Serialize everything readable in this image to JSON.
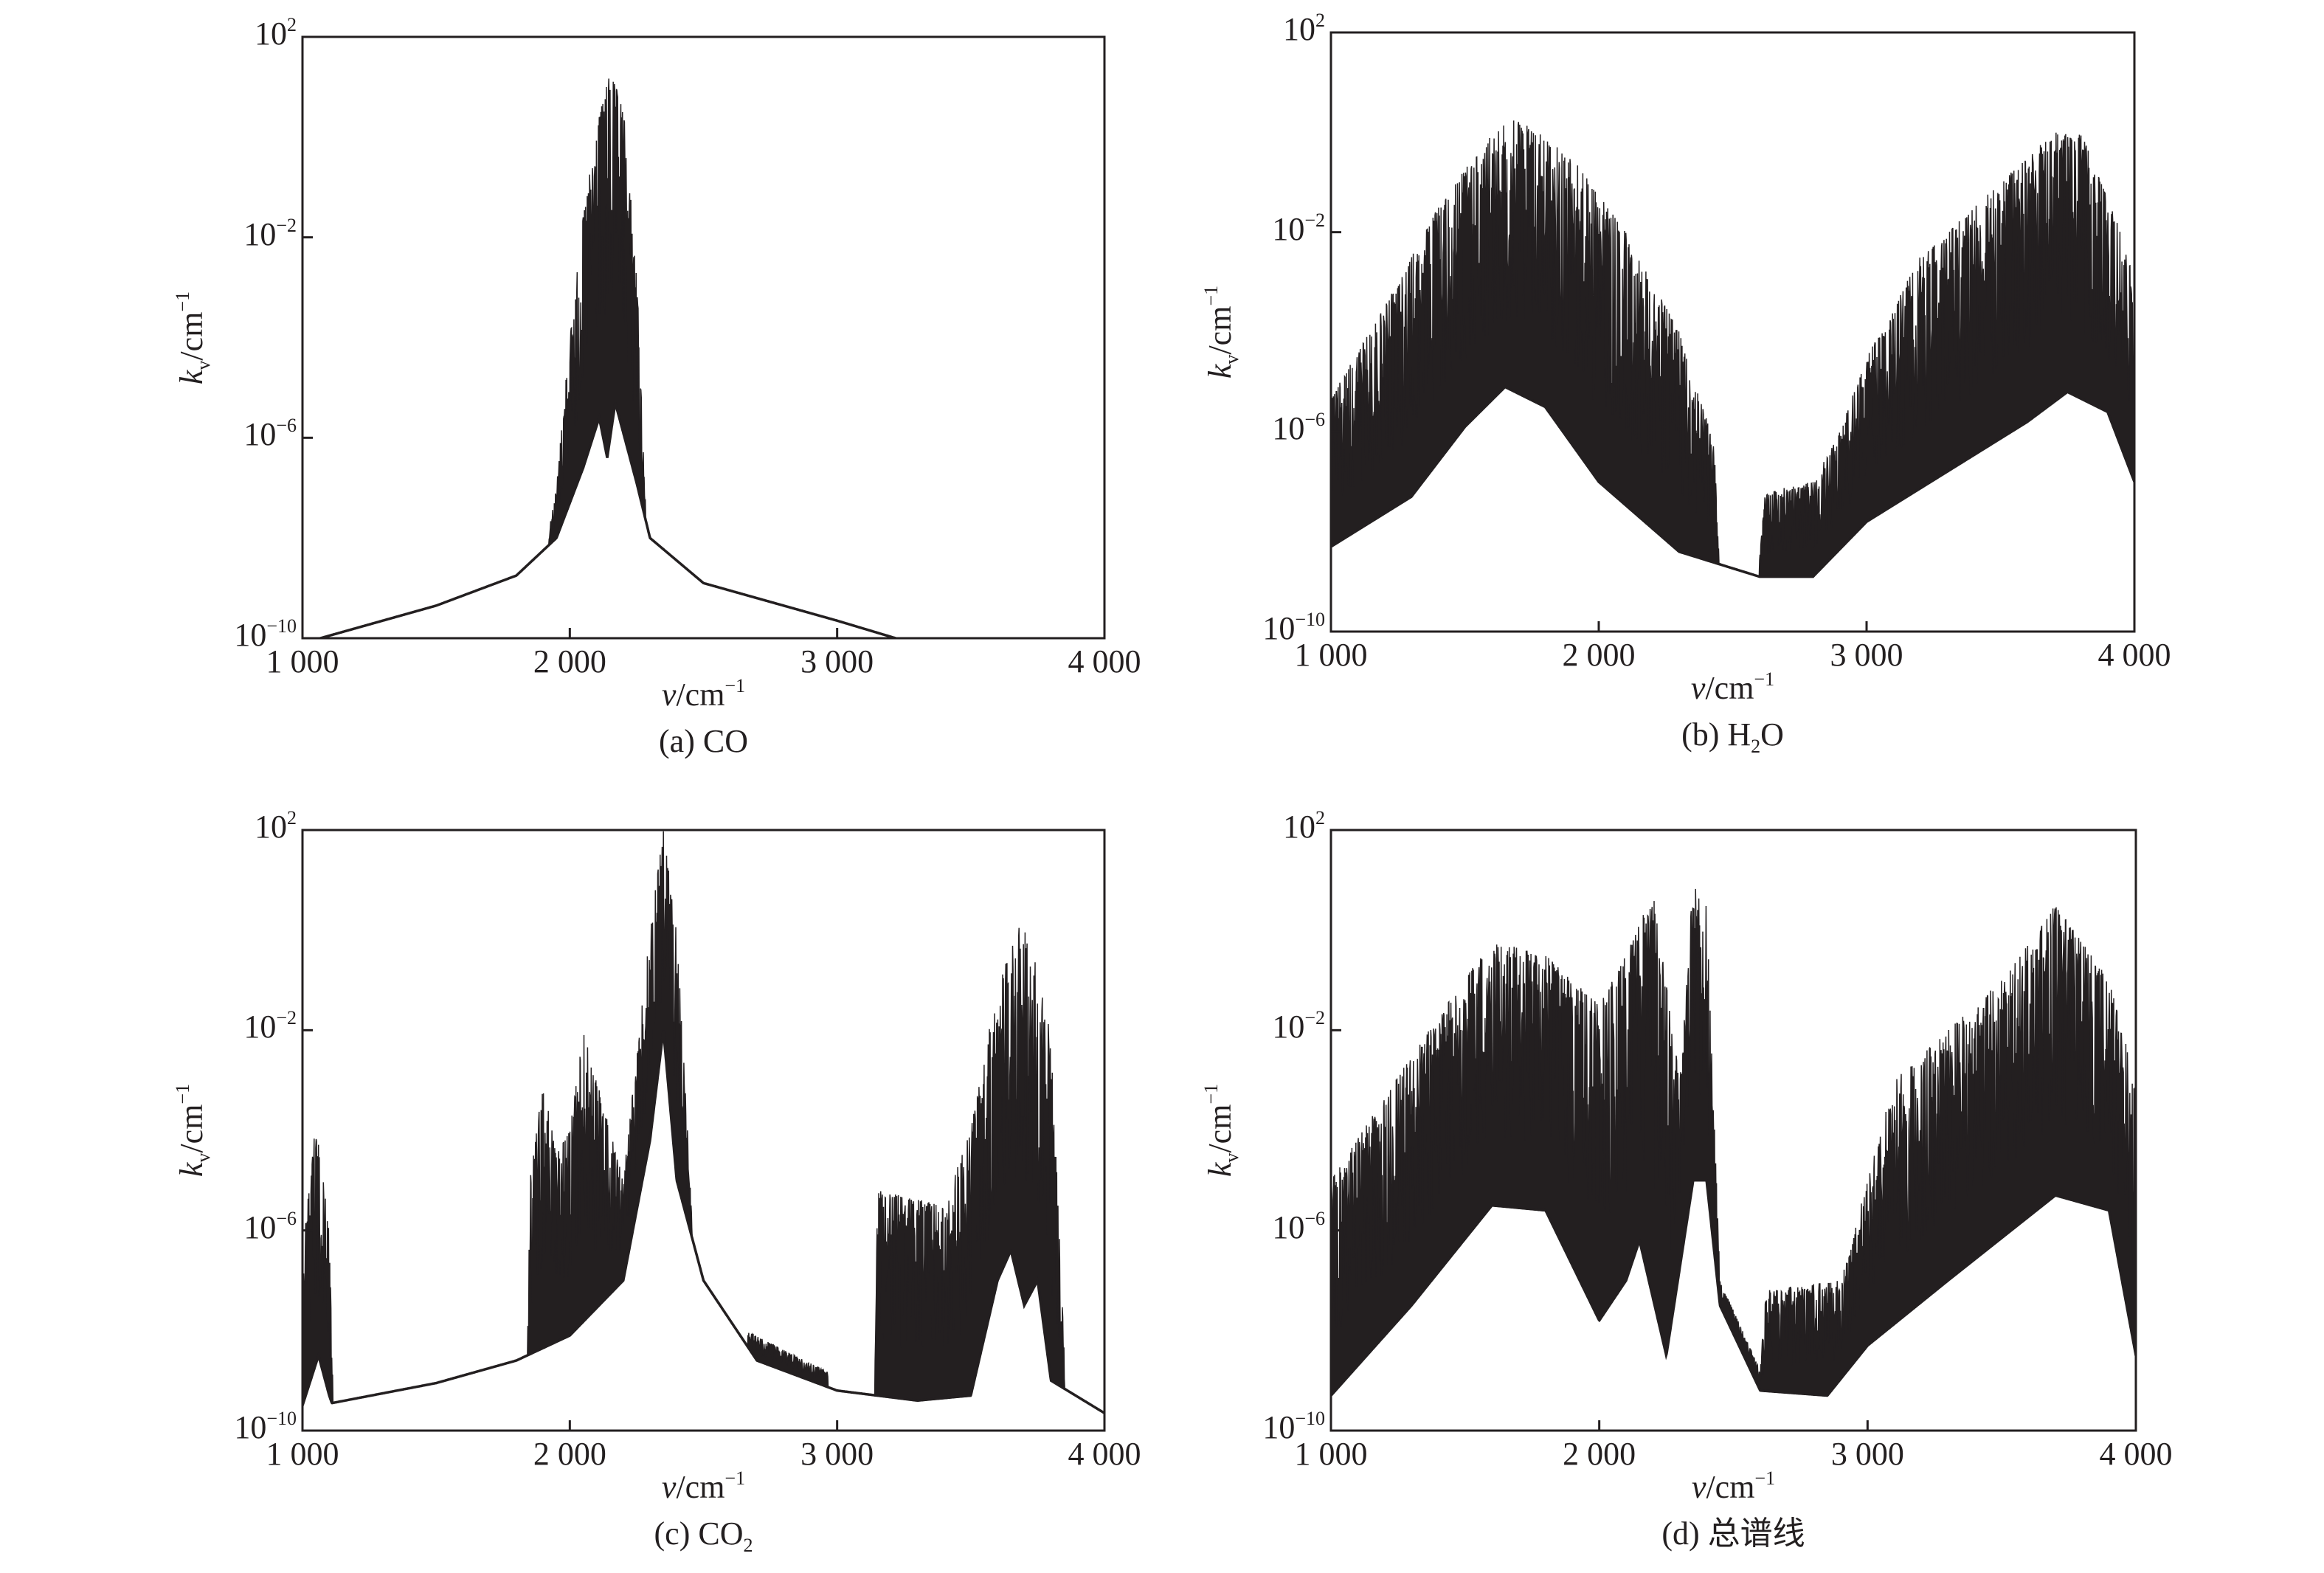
{
  "chart_data": [
    {
      "type": "area",
      "title": "",
      "caption": {
        "pre": "(a) CO",
        "sub": "",
        "post": ""
      },
      "xlabel": {
        "var": "v",
        "unit": "/cm",
        "exp": "−1"
      },
      "ylabel": {
        "var": "k",
        "sub": "v",
        "unit": "/cm",
        "exp": "−1"
      },
      "xlim": [
        1000,
        4000
      ],
      "ylim_log10": [
        -10,
        2
      ],
      "xticks": [
        "1 000",
        "2 000",
        "3 000",
        "4 000"
      ],
      "xtick_values": [
        1000,
        2000,
        3000,
        4000
      ],
      "yticks": [
        {
          "base": "10",
          "exp": "2"
        },
        {
          "base": "10",
          "exp": "−2"
        },
        {
          "base": "10",
          "exp": "−6"
        },
        {
          "base": "10",
          "exp": "−10"
        }
      ],
      "ytick_values": [
        2,
        -2,
        -6,
        -10
      ],
      "series": [
        {
          "name": "CO",
          "lower_log10": [
            [
              1000,
              -10.1
            ],
            [
              1500,
              -9.35
            ],
            [
              1800,
              -8.75
            ],
            [
              1950,
              -8.0
            ],
            [
              2050,
              -6.6
            ],
            [
              2110,
              -5.6
            ],
            [
              2140,
              -6.4
            ],
            [
              2170,
              -5.3
            ],
            [
              2250,
              -6.9
            ],
            [
              2300,
              -8.0
            ],
            [
              2500,
              -8.9
            ],
            [
              3000,
              -9.65
            ],
            [
              3250,
              -10.05
            ],
            [
              4000,
              -10.8
            ]
          ],
          "upper_log10": [
            [
              1910,
              -8.2
            ],
            [
              1950,
              -7.0
            ],
            [
              1990,
              -4.5
            ],
            [
              2050,
              -1.6
            ],
            [
              2100,
              0.2
            ],
            [
              2150,
              1.3
            ],
            [
              2200,
              0.6
            ],
            [
              2250,
              -2.6
            ],
            [
              2270,
              -5.5
            ],
            [
              2290,
              -8.3
            ]
          ]
        }
      ]
    },
    {
      "type": "area",
      "title": "",
      "caption": {
        "pre": "(b) H",
        "sub": "2",
        "post": "O"
      },
      "xlabel": {
        "var": "v",
        "unit": "/cm",
        "exp": "−1"
      },
      "ylabel": {
        "var": "k",
        "sub": "v",
        "unit": "/cm",
        "exp": "−1"
      },
      "xlim": [
        1000,
        4000
      ],
      "ylim_log10": [
        -10,
        2
      ],
      "xticks": [
        "1 000",
        "2 000",
        "3 000",
        "4 000"
      ],
      "xtick_values": [
        1000,
        2000,
        3000,
        4000
      ],
      "yticks": [
        {
          "base": "10",
          "exp": "2"
        },
        {
          "base": "10",
          "exp": "−2"
        },
        {
          "base": "10",
          "exp": "−6"
        },
        {
          "base": "10",
          "exp": "−10"
        }
      ],
      "ytick_values": [
        2,
        -2,
        -6,
        -10
      ],
      "series": [
        {
          "name": "H2O",
          "lower_log10": [
            [
              1000,
              -8.3
            ],
            [
              1300,
              -7.3
            ],
            [
              1500,
              -5.9
            ],
            [
              1650,
              -5.1
            ],
            [
              1800,
              -5.5
            ],
            [
              2000,
              -7.0
            ],
            [
              2300,
              -8.4
            ],
            [
              2600,
              -8.9
            ],
            [
              2800,
              -8.9
            ],
            [
              3000,
              -7.8
            ],
            [
              3300,
              -6.8
            ],
            [
              3600,
              -5.8
            ],
            [
              3750,
              -5.2
            ],
            [
              3900,
              -5.6
            ],
            [
              4000,
              -7.0
            ]
          ],
          "upper_log10": [
            [
              1000,
              -5.3
            ],
            [
              1200,
              -3.5
            ],
            [
              1400,
              -1.5
            ],
            [
              1600,
              0.0
            ],
            [
              1700,
              0.3
            ],
            [
              1900,
              -0.5
            ],
            [
              2100,
              -2.0
            ],
            [
              2300,
              -4.0
            ],
            [
              2430,
              -6.2
            ],
            [
              2450,
              -8.5
            ],
            [
              2600,
              -8.6
            ],
            [
              2620,
              -7.2
            ],
            [
              2800,
              -7.0
            ],
            [
              2900,
              -6.0
            ],
            [
              3000,
              -4.5
            ],
            [
              3200,
              -2.5
            ],
            [
              3500,
              -1.0
            ],
            [
              3700,
              0.0
            ],
            [
              3800,
              0.0
            ],
            [
              3950,
              -2.0
            ],
            [
              4000,
              -3.0
            ]
          ]
        }
      ]
    },
    {
      "type": "area",
      "title": "",
      "caption": {
        "pre": "(c) CO",
        "sub": "2",
        "post": ""
      },
      "xlabel": {
        "var": "v",
        "unit": "/cm",
        "exp": "−1"
      },
      "ylabel": {
        "var": "k",
        "sub": "v",
        "unit": "/cm",
        "exp": "−1"
      },
      "xlim": [
        1000,
        4000
      ],
      "ylim_log10": [
        -10,
        2
      ],
      "xticks": [
        "1 000",
        "2 000",
        "3 000",
        "4 000"
      ],
      "xtick_values": [
        1000,
        2000,
        3000,
        4000
      ],
      "yticks": [
        {
          "base": "10",
          "exp": "2"
        },
        {
          "base": "10",
          "exp": "−2"
        },
        {
          "base": "10",
          "exp": "−6"
        },
        {
          "base": "10",
          "exp": "−10"
        }
      ],
      "ytick_values": [
        2,
        -2,
        -6,
        -10
      ],
      "series": [
        {
          "name": "CO2",
          "lower_log10": [
            [
              1000,
              -9.5
            ],
            [
              1060,
              -8.5
            ],
            [
              1100,
              -9.3
            ],
            [
              1110,
              -9.45
            ],
            [
              1500,
              -9.05
            ],
            [
              1800,
              -8.6
            ],
            [
              2000,
              -8.1
            ],
            [
              2200,
              -7.0
            ],
            [
              2300,
              -4.2
            ],
            [
              2350,
              -2.0
            ],
            [
              2400,
              -5.0
            ],
            [
              2500,
              -7.0
            ],
            [
              2700,
              -8.6
            ],
            [
              3000,
              -9.2
            ],
            [
              3300,
              -9.4
            ],
            [
              3500,
              -9.3
            ],
            [
              3600,
              -7.0
            ],
            [
              3650,
              -6.4
            ],
            [
              3700,
              -7.5
            ],
            [
              3750,
              -7.0
            ],
            [
              3800,
              -9.0
            ],
            [
              4000,
              -9.65
            ]
          ],
          "upper_log10": [
            [
              1000,
              -6.5
            ],
            [
              1050,
              -3.8
            ],
            [
              1100,
              -6.0
            ],
            [
              1115,
              -9.4
            ],
            [
              1840,
              -9.0
            ],
            [
              1850,
              -5.0
            ],
            [
              1900,
              -3.0
            ],
            [
              1950,
              -4.5
            ],
            [
              2000,
              -4.0
            ],
            [
              2050,
              -2.0
            ],
            [
              2100,
              -3.0
            ],
            [
              2200,
              -5.0
            ],
            [
              2300,
              0.0
            ],
            [
              2350,
              2.0
            ],
            [
              2400,
              0.0
            ],
            [
              2450,
              -5.0
            ],
            [
              2470,
              -7.5
            ],
            [
              3140,
              -9.3
            ],
            [
              3150,
              -5.2
            ],
            [
              3400,
              -5.5
            ],
            [
              3500,
              -4.0
            ],
            [
              3600,
              -1.0
            ],
            [
              3700,
              0.3
            ],
            [
              3800,
              -2.0
            ],
            [
              3850,
              -8.5
            ]
          ]
        }
      ]
    },
    {
      "type": "area",
      "title": "",
      "caption": {
        "pre": "(d) 总谱线",
        "sub": "",
        "post": ""
      },
      "xlabel": {
        "var": "v",
        "unit": "/cm",
        "exp": "−1"
      },
      "ylabel": {
        "var": "k",
        "sub": "v",
        "unit": "/cm",
        "exp": "−1"
      },
      "xlim": [
        1000,
        4000
      ],
      "ylim_log10": [
        -10,
        2
      ],
      "xticks": [
        "1 000",
        "2 000",
        "3 000",
        "4 000"
      ],
      "xtick_values": [
        1000,
        2000,
        3000,
        4000
      ],
      "yticks": [
        {
          "base": "10",
          "exp": "2"
        },
        {
          "base": "10",
          "exp": "−2"
        },
        {
          "base": "10",
          "exp": "−6"
        },
        {
          "base": "10",
          "exp": "−10"
        }
      ],
      "ytick_values": [
        2,
        -2,
        -6,
        -10
      ],
      "series": [
        {
          "name": "total",
          "lower_log10": [
            [
              1000,
              -9.3
            ],
            [
              1300,
              -7.5
            ],
            [
              1600,
              -5.5
            ],
            [
              1800,
              -5.6
            ],
            [
              2000,
              -7.8
            ],
            [
              2100,
              -7.0
            ],
            [
              2150,
              -6.2
            ],
            [
              2250,
              -8.5
            ],
            [
              2350,
              -5.0
            ],
            [
              2400,
              -5.0
            ],
            [
              2450,
              -7.5
            ],
            [
              2600,
              -9.2
            ],
            [
              2850,
              -9.3
            ],
            [
              3000,
              -8.3
            ],
            [
              3300,
              -7.0
            ],
            [
              3700,
              -5.3
            ],
            [
              3900,
              -5.6
            ],
            [
              4000,
              -8.5
            ]
          ],
          "upper_log10": [
            [
              1000,
              -5.0
            ],
            [
              1300,
              -2.5
            ],
            [
              1600,
              -0.2
            ],
            [
              1800,
              -0.5
            ],
            [
              2000,
              -1.5
            ],
            [
              2100,
              -0.5
            ],
            [
              2200,
              0.8
            ],
            [
              2300,
              -3.0
            ],
            [
              2350,
              1.0
            ],
            [
              2400,
              0.5
            ],
            [
              2450,
              -7.0
            ],
            [
              2600,
              -8.8
            ],
            [
              2620,
              -7.2
            ],
            [
              2900,
              -7.0
            ],
            [
              3100,
              -3.0
            ],
            [
              3500,
              -1.0
            ],
            [
              3700,
              0.5
            ],
            [
              3900,
              -1.0
            ],
            [
              4000,
              -3.0
            ]
          ]
        }
      ]
    }
  ]
}
